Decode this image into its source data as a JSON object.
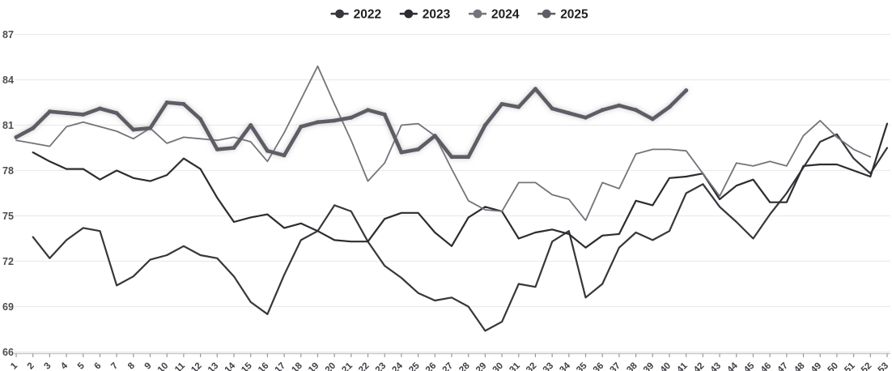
{
  "legend": {
    "items": [
      {
        "label": "2022",
        "color": "#36363b"
      },
      {
        "label": "2023",
        "color": "#2c2c31"
      },
      {
        "label": "2024",
        "color": "#74747a"
      },
      {
        "label": "2025",
        "color": "#5d5d65"
      }
    ]
  },
  "axes": {
    "y_tick_labels": [
      "87",
      "84",
      "81",
      "78",
      "75",
      "72",
      "69",
      "66"
    ],
    "x_tick_labels": [
      "1",
      "2",
      "3",
      "4",
      "5",
      "6",
      "7",
      "8",
      "9",
      "10",
      "11",
      "12",
      "13",
      "14",
      "15",
      "16",
      "17",
      "18",
      "19",
      "20",
      "21",
      "22",
      "23",
      "24",
      "25",
      "26",
      "27",
      "28",
      "29",
      "30",
      "31",
      "32",
      "33",
      "34",
      "35",
      "36",
      "37",
      "38",
      "39",
      "40",
      "41",
      "42",
      "43",
      "44",
      "45",
      "46",
      "47",
      "48",
      "49",
      "50",
      "51",
      "52",
      "53"
    ]
  },
  "colors": {
    "gridline": "#ebebeb",
    "axis_line": "#c9c9c9",
    "tick": "#999999",
    "x_label": "#3f3f45",
    "y_label": "#4c4c52",
    "legend_text": "#1f1f24"
  },
  "chart_data": {
    "type": "line",
    "title": "",
    "x": [
      1,
      2,
      3,
      4,
      5,
      6,
      7,
      8,
      9,
      10,
      11,
      12,
      13,
      14,
      15,
      16,
      17,
      18,
      19,
      20,
      21,
      22,
      23,
      24,
      25,
      26,
      27,
      28,
      29,
      30,
      31,
      32,
      33,
      34,
      35,
      36,
      37,
      38,
      39,
      40,
      41,
      42,
      43,
      44,
      45,
      46,
      47,
      48,
      49,
      50,
      51,
      52,
      53
    ],
    "ylim": [
      66,
      87
    ],
    "y_tick_step": 3,
    "grid": true,
    "legend_position": "top-center",
    "series": [
      {
        "name": "2022",
        "color": "#36363b",
        "stroke_width": 2.2,
        "glow": false,
        "markers": false,
        "values": [
          null,
          73.6,
          72.2,
          73.4,
          74.2,
          74.0,
          70.4,
          71.0,
          72.1,
          72.4,
          73.0,
          72.4,
          72.2,
          71.0,
          69.3,
          68.5,
          71.1,
          73.4,
          74.0,
          75.7,
          75.3,
          73.3,
          71.7,
          70.9,
          69.9,
          69.4,
          69.6,
          69.0,
          67.4,
          68.0,
          70.5,
          70.3,
          73.3,
          74.0,
          69.6,
          70.5,
          72.9,
          73.9,
          73.4,
          74.0,
          76.5,
          77.1,
          75.6,
          74.6,
          73.5,
          75.1,
          76.5,
          78.2,
          79.9,
          80.4,
          78.8,
          77.8,
          79.5
        ]
      },
      {
        "name": "2023",
        "color": "#2c2c31",
        "stroke_width": 2.2,
        "glow": false,
        "markers": false,
        "values": [
          null,
          79.2,
          78.6,
          78.1,
          78.1,
          77.4,
          78.0,
          77.5,
          77.3,
          77.7,
          78.8,
          78.1,
          76.2,
          74.6,
          74.9,
          75.1,
          74.2,
          74.5,
          74.0,
          73.4,
          73.3,
          73.3,
          74.8,
          75.2,
          75.2,
          73.9,
          73.0,
          74.9,
          75.6,
          75.3,
          73.5,
          73.9,
          74.1,
          73.8,
          72.9,
          73.7,
          73.8,
          76.0,
          75.7,
          77.5,
          77.6,
          77.8,
          76.1,
          77.0,
          77.4,
          75.9,
          75.9,
          78.3,
          78.4,
          78.4,
          78.0,
          77.6,
          81.1
        ]
      },
      {
        "name": "2024",
        "color": "#74747a",
        "stroke_width": 1.8,
        "glow": false,
        "markers": false,
        "values": [
          80.0,
          79.8,
          79.6,
          80.9,
          81.2,
          80.9,
          80.6,
          80.1,
          80.8,
          79.8,
          80.2,
          80.1,
          80.0,
          80.2,
          79.9,
          78.6,
          80.5,
          82.7,
          84.9,
          82.4,
          80.0,
          77.3,
          78.5,
          81.0,
          81.1,
          80.3,
          78.1,
          76.0,
          75.4,
          75.3,
          77.2,
          77.2,
          76.4,
          76.1,
          74.7,
          77.2,
          76.8,
          79.1,
          79.4,
          79.4,
          79.3,
          77.8,
          76.3,
          78.5,
          78.3,
          78.6,
          78.3,
          80.3,
          81.3,
          80.2,
          79.4,
          78.9,
          null
        ]
      },
      {
        "name": "2025",
        "color": "#5d5d65",
        "stroke_width": 4.6,
        "glow": true,
        "markers": true,
        "values": [
          80.2,
          80.8,
          81.9,
          81.8,
          81.7,
          82.1,
          81.8,
          80.7,
          80.8,
          82.5,
          82.4,
          81.4,
          79.4,
          79.5,
          81.0,
          79.3,
          79.0,
          80.9,
          81.2,
          81.3,
          81.5,
          82.0,
          81.7,
          79.2,
          79.4,
          80.3,
          78.9,
          78.9,
          81.0,
          82.4,
          82.2,
          83.4,
          82.1,
          81.8,
          81.5,
          82.0,
          82.3,
          82.0,
          81.4,
          82.2,
          83.3,
          null,
          null,
          null,
          null,
          null,
          null,
          null,
          null,
          null,
          null,
          null,
          null
        ]
      }
    ]
  }
}
